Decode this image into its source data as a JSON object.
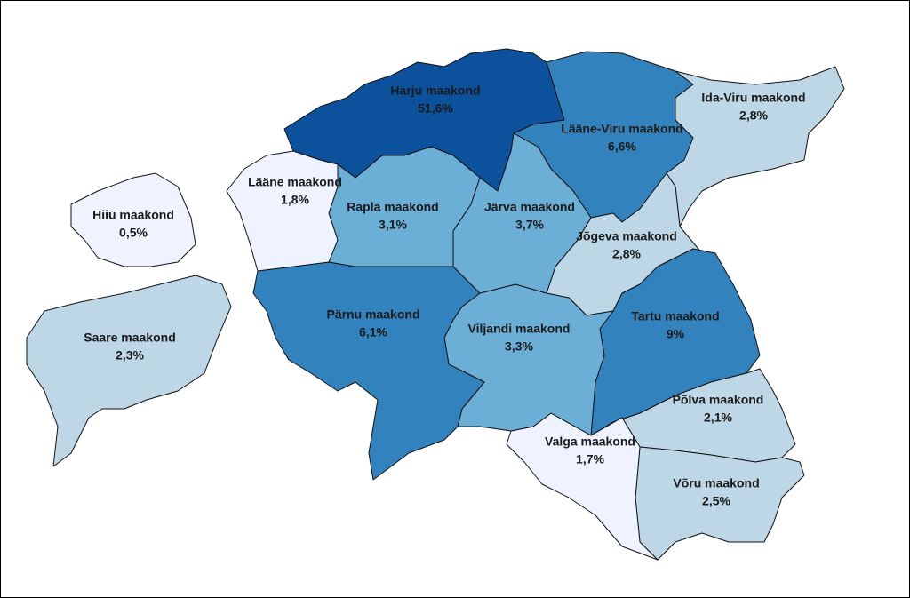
{
  "map": {
    "regions": [
      {
        "name": "Harju maakond",
        "value": 51.6,
        "value_label": "51,6%",
        "color": "#0b519c"
      },
      {
        "name": "Lääne-Viru maakond",
        "value": 6.6,
        "value_label": "6,6%",
        "color": "#3182bd"
      },
      {
        "name": "Ida-Viru maakond",
        "value": 2.8,
        "value_label": "2,8%",
        "color": "#bdd7e7"
      },
      {
        "name": "Jõgeva maakond",
        "value": 2.8,
        "value_label": "2,8%",
        "color": "#bdd7e7"
      },
      {
        "name": "Tartu maakond",
        "value": 9,
        "value_label": "9%",
        "color": "#3182bd"
      },
      {
        "name": "Põlva maakond",
        "value": 2.1,
        "value_label": "2,1%",
        "color": "#bdd7e7"
      },
      {
        "name": "Võru maakond",
        "value": 2.5,
        "value_label": "2,5%",
        "color": "#bdd7e7"
      },
      {
        "name": "Valga maakond",
        "value": 1.7,
        "value_label": "1,7%",
        "color": "#eff3ff"
      },
      {
        "name": "Viljandi maakond",
        "value": 3.3,
        "value_label": "3,3%",
        "color": "#6baed6"
      },
      {
        "name": "Pärnu maakond",
        "value": 6.1,
        "value_label": "6,1%",
        "color": "#3182bd"
      },
      {
        "name": "Rapla maakond",
        "value": 3.1,
        "value_label": "3,1%",
        "color": "#6baed6"
      },
      {
        "name": "Järva maakond",
        "value": 3.7,
        "value_label": "3,7%",
        "color": "#6baed6"
      },
      {
        "name": "Lääne maakond",
        "value": 1.8,
        "value_label": "1,8%",
        "color": "#eff3ff"
      },
      {
        "name": "Hiiu maakond",
        "value": 0.5,
        "value_label": "0,5%",
        "color": "#eff3ff"
      },
      {
        "name": "Saare maakond",
        "value": 2.3,
        "value_label": "2,3%",
        "color": "#bdd7e7"
      }
    ]
  }
}
